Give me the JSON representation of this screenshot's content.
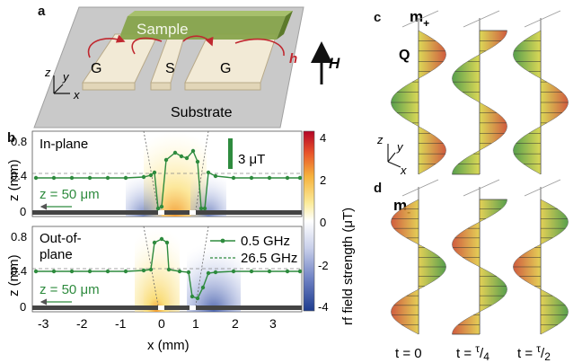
{
  "panels": {
    "a": {
      "letter": "a",
      "sample": "Sample",
      "substrate": "Substrate",
      "electrodes": [
        "G",
        "S",
        "G"
      ],
      "h_label": "h",
      "H_label": "H",
      "axes": [
        "z",
        "y",
        "x"
      ]
    },
    "b": {
      "letter": "b",
      "top_label": "In-plane",
      "bottom_label_1": "Out-of-",
      "bottom_label_2": "plane",
      "scalebar": "3 μT",
      "z_annot_top": "z = 50 μm",
      "z_annot_bottom": "z = 50 μm",
      "ylabel": "z (mm)",
      "xlabel": "x (mm)",
      "yticks": [
        "0",
        "0.4",
        "0.8"
      ],
      "xticks": [
        "-3",
        "-2",
        "-1",
        "0",
        "1",
        "2",
        "3"
      ],
      "legend": [
        {
          "label": "0.5 GHz",
          "style": "solid"
        },
        {
          "label": "26.5 GHz",
          "style": "dashed"
        }
      ],
      "colorbar_label": "rf field strength (μT)",
      "colorbar_ticks": [
        "4",
        "2",
        "0",
        "-2",
        "-4"
      ]
    },
    "c": {
      "letter": "c",
      "m_label": "m",
      "m_sign": "+",
      "Q_label": "Q",
      "axes": [
        "z",
        "y",
        "x"
      ]
    },
    "d": {
      "letter": "d",
      "m_label": "m",
      "m_sign": "-"
    },
    "time_labels": {
      "t0": "t = 0",
      "t1_prefix": "t = ",
      "t1_num": "τ",
      "t1_den": "4",
      "t2_prefix": "t = ",
      "t2_num": "τ",
      "t2_den": "2"
    }
  },
  "colors": {
    "green": "#2e8b3e",
    "sample": "#6f8f3a",
    "substrate": "#c8c8c8",
    "rf_arrow": "#c0282f"
  }
}
